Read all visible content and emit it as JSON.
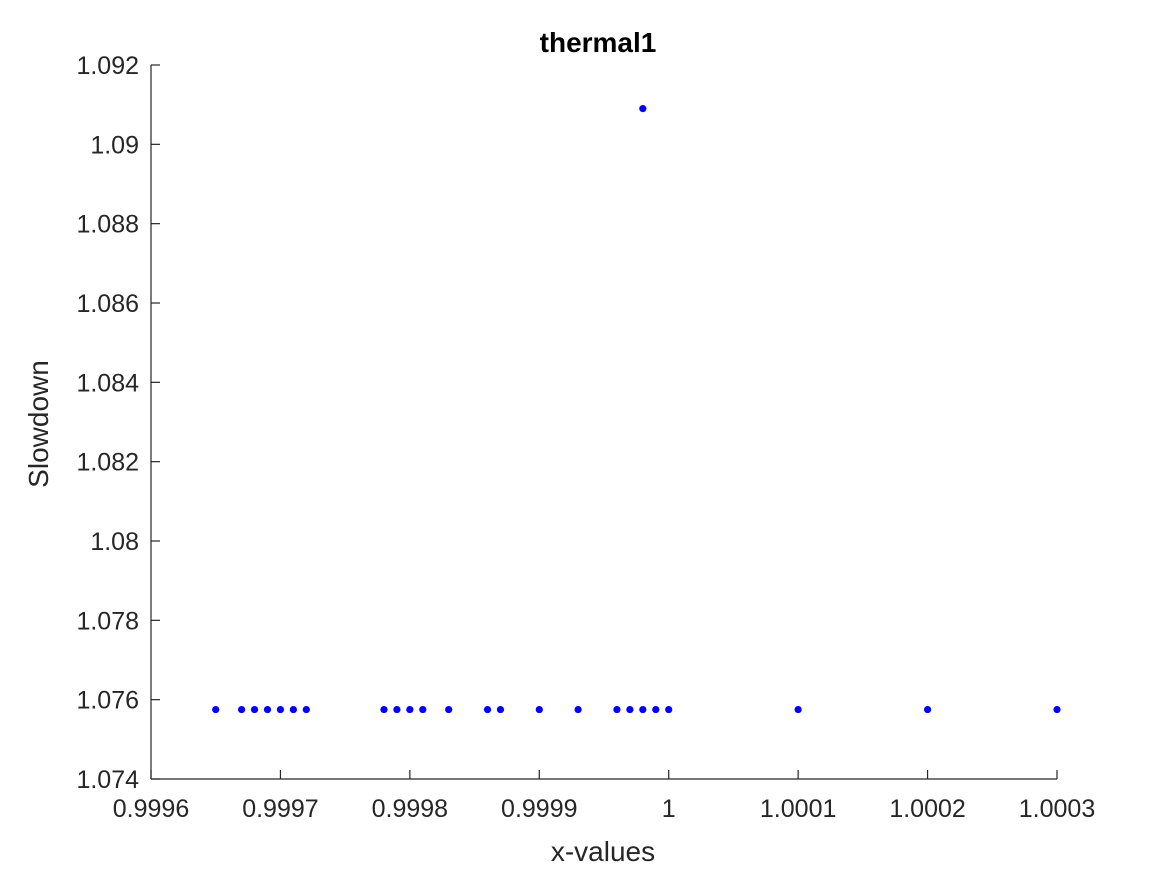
{
  "chart_data": {
    "type": "scatter",
    "title": "thermal1",
    "xlabel": "x-values",
    "ylabel": "Slowdown",
    "xlim": [
      0.9996,
      1.0003
    ],
    "ylim": [
      1.074,
      1.092
    ],
    "xticks": [
      0.9996,
      0.9997,
      0.9998,
      0.9999,
      1,
      1.0001,
      1.0002,
      1.0003
    ],
    "xtick_labels": [
      "0.9996",
      "0.9997",
      "0.9998",
      "0.9999",
      "1",
      "1.0001",
      "1.0002",
      "1.0003"
    ],
    "yticks": [
      1.074,
      1.076,
      1.078,
      1.08,
      1.082,
      1.084,
      1.086,
      1.088,
      1.09,
      1.092
    ],
    "ytick_labels": [
      "1.074",
      "1.076",
      "1.078",
      "1.08",
      "1.082",
      "1.084",
      "1.086",
      "1.088",
      "1.09",
      "1.092"
    ],
    "grid": false,
    "marker_color": "#0000ff",
    "axis_color": "#262626",
    "series": [
      {
        "x": [
          0.99965,
          0.99967,
          0.99968,
          0.99969,
          0.9997,
          0.99971,
          0.99972,
          0.99978,
          0.99979,
          0.9998,
          0.99981,
          0.99983,
          0.99986,
          0.99987,
          0.9999,
          0.99993,
          0.99996,
          0.99997,
          0.99998,
          0.99998,
          0.99999,
          1.0,
          1.0001,
          1.0002,
          1.0003
        ],
        "y": [
          1.07575,
          1.07575,
          1.07575,
          1.07575,
          1.07575,
          1.07575,
          1.07575,
          1.07575,
          1.07575,
          1.07575,
          1.07575,
          1.07575,
          1.07575,
          1.07575,
          1.07575,
          1.07575,
          1.07575,
          1.07575,
          1.07575,
          1.0909,
          1.07575,
          1.07575,
          1.07575,
          1.07575,
          1.07575
        ]
      }
    ]
  }
}
